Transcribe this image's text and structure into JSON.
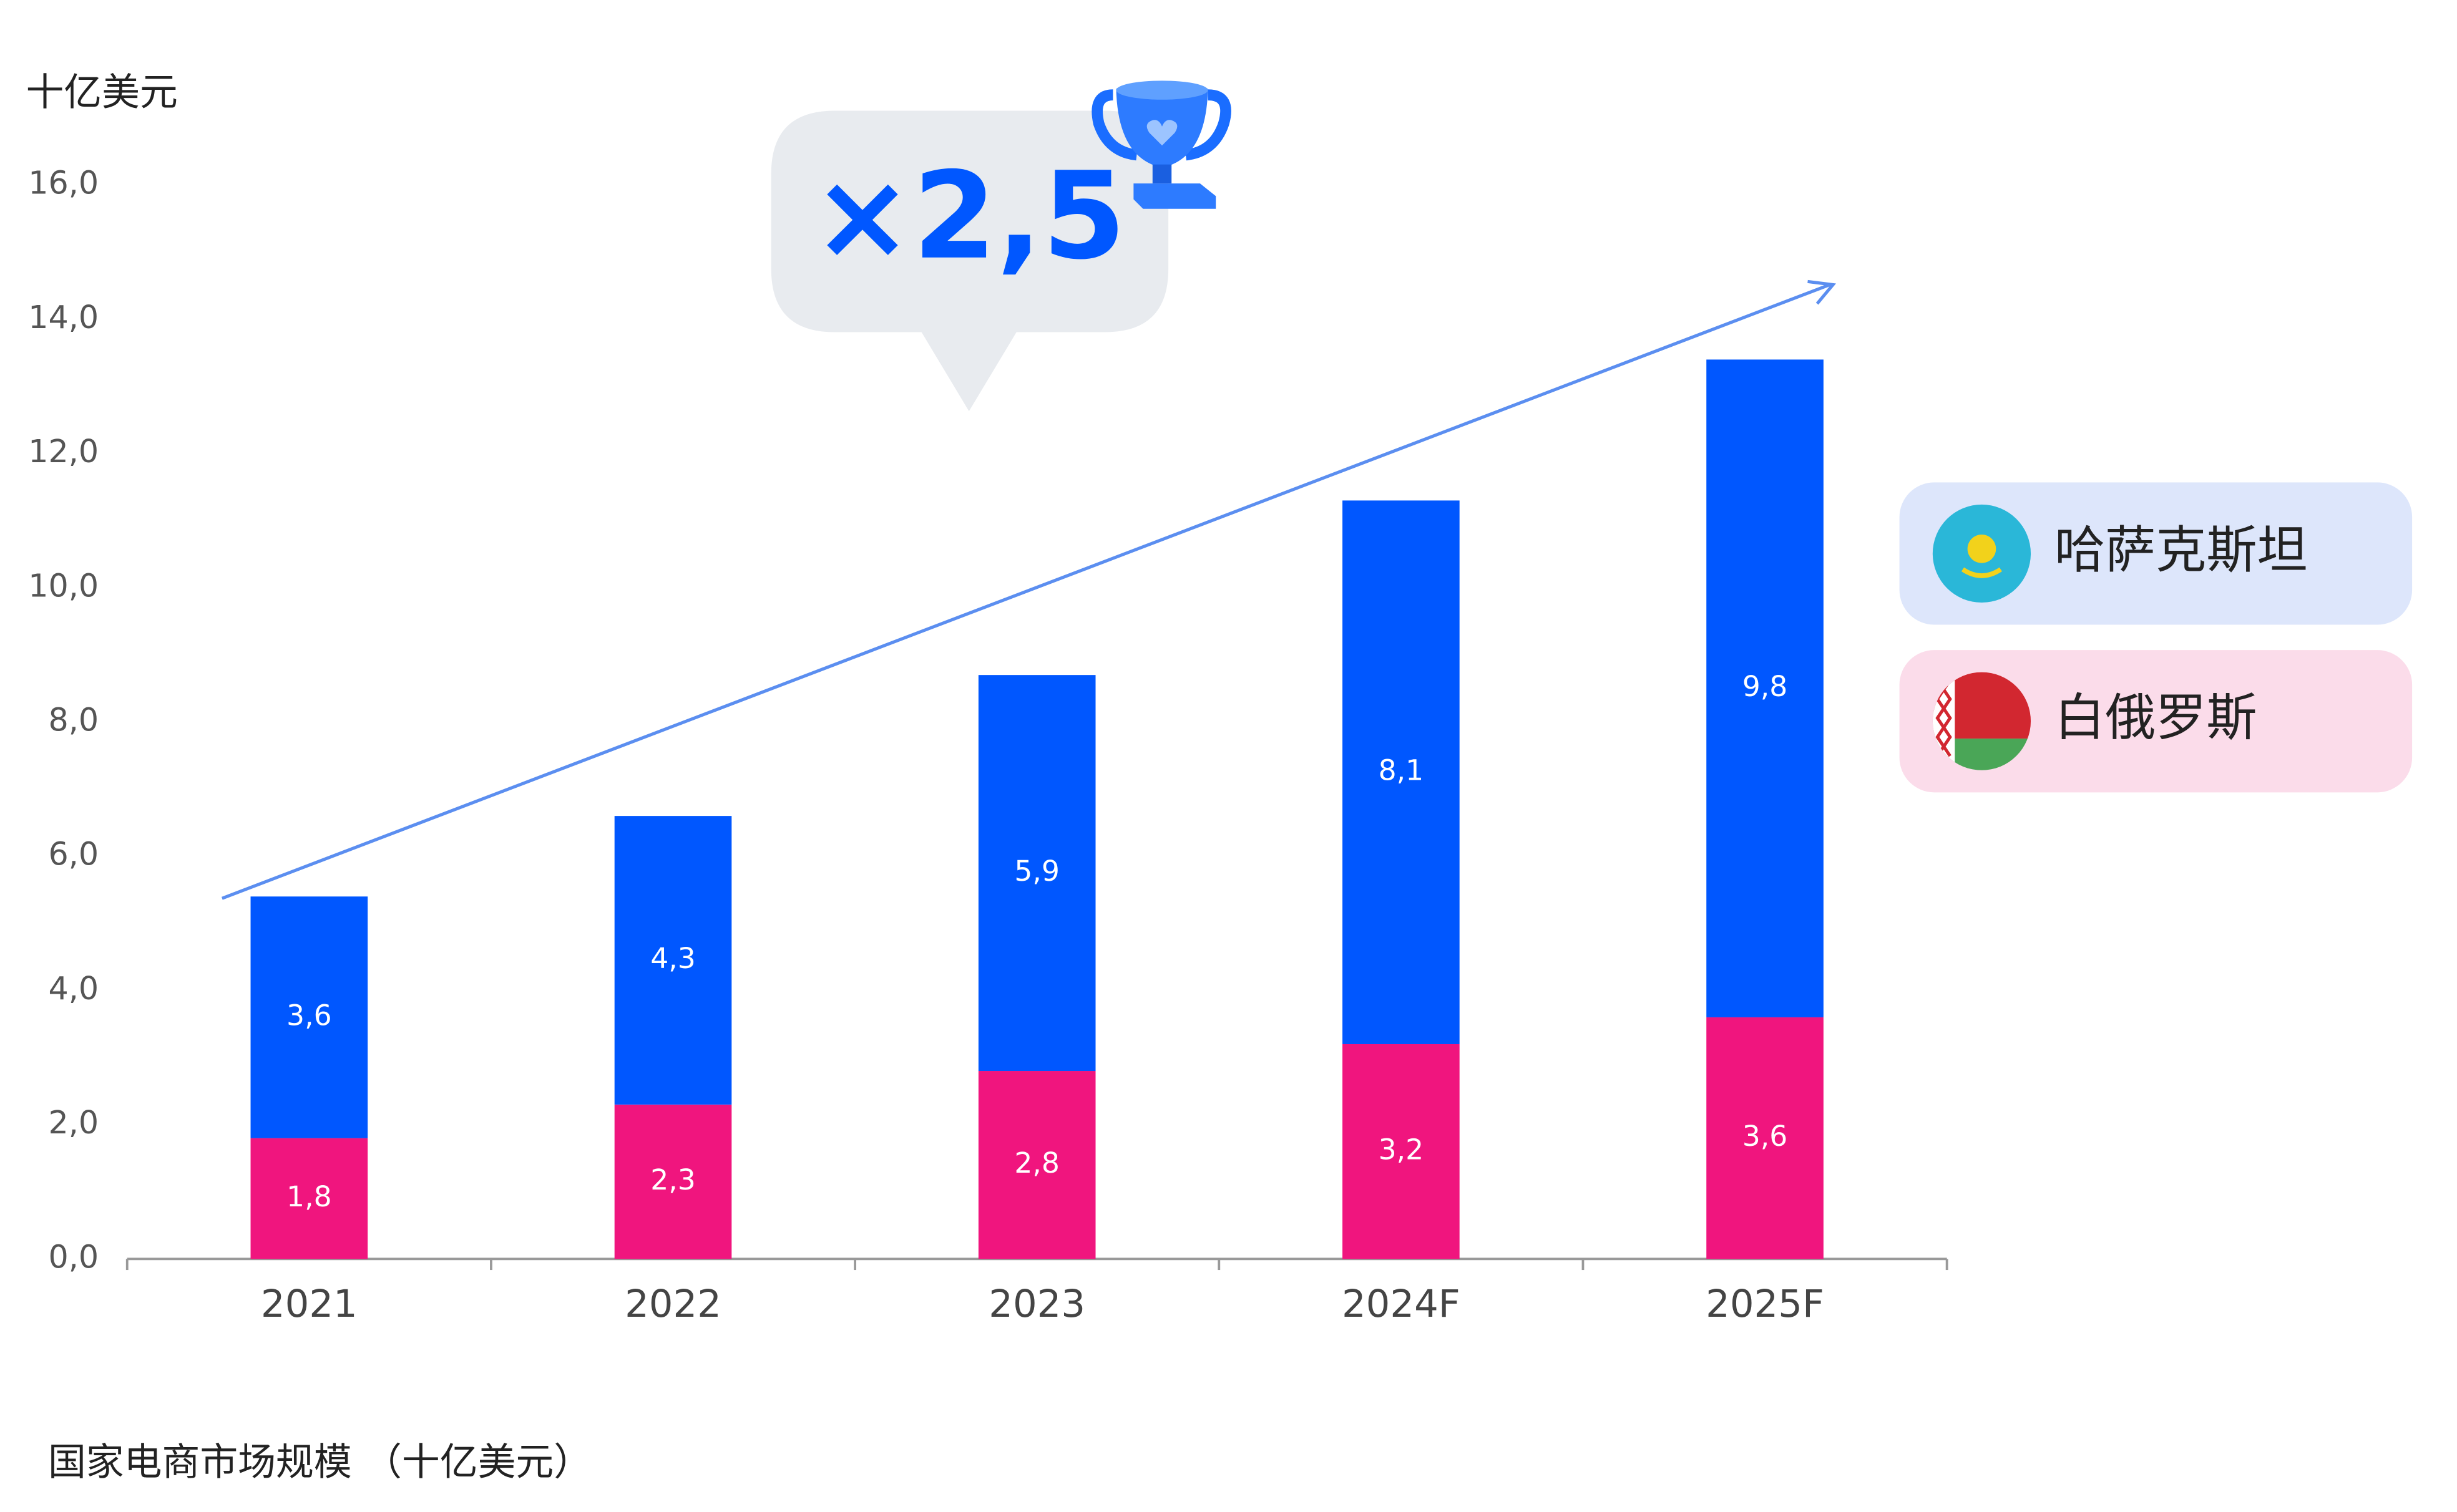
{
  "chart_data": {
    "type": "stacked-bar",
    "y_axis_label": "十亿美元",
    "footnote": "国家电商市场规模 （十亿美元）",
    "annotation": "×2,5",
    "categories": [
      "2021",
      "2022",
      "2023",
      "2024F",
      "2025F"
    ],
    "series": [
      {
        "name": "哈萨克斯坦",
        "color": "#0057ff",
        "values": [
          3.6,
          4.3,
          5.9,
          8.1,
          9.8
        ],
        "value_labels": [
          "3,6",
          "4,3",
          "5,9",
          "8,1",
          "9,8"
        ]
      },
      {
        "name": "白俄罗斯",
        "color": "#f0157e",
        "values": [
          1.8,
          2.3,
          2.8,
          3.2,
          3.6
        ],
        "value_labels": [
          "1,8",
          "2,3",
          "2,8",
          "3,2",
          "3,6"
        ]
      }
    ],
    "ylim": [
      0,
      16
    ],
    "yticks": [
      {
        "value": 0,
        "label": "0,0"
      },
      {
        "value": 2,
        "label": "2,0"
      },
      {
        "value": 4,
        "label": "4,0"
      },
      {
        "value": 6,
        "label": "6,0"
      },
      {
        "value": 8,
        "label": "8,0"
      },
      {
        "value": 10,
        "label": "10,0"
      },
      {
        "value": 12,
        "label": "12,0"
      },
      {
        "value": 14,
        "label": "14,0"
      },
      {
        "value": 16,
        "label": "16,0"
      }
    ],
    "grid": false
  }
}
